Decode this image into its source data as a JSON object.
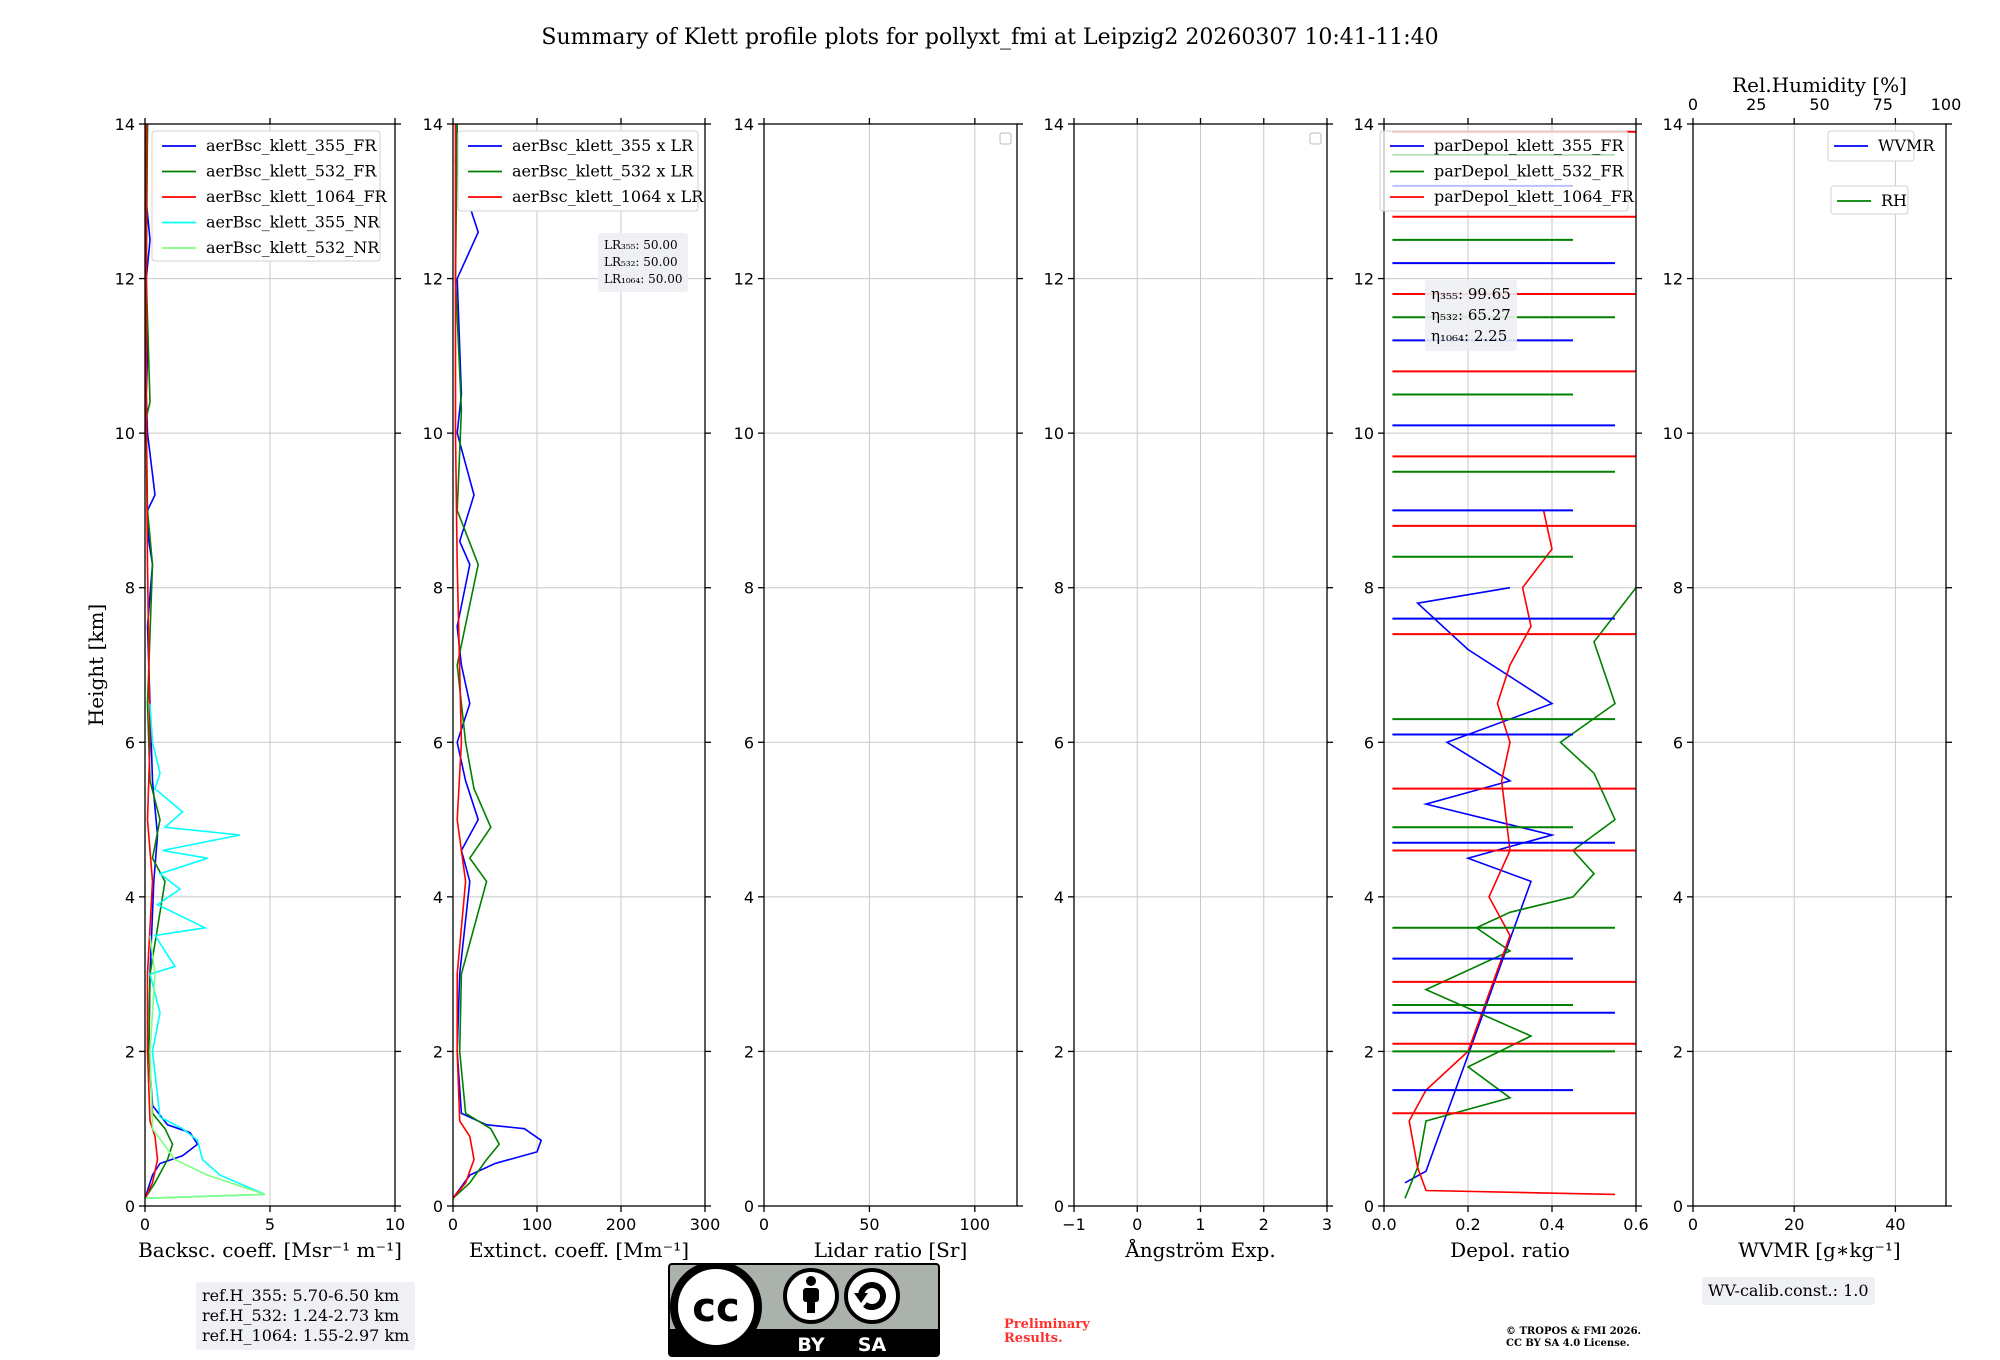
{
  "title": "Summary of Klett profile plots for pollyxt_fmi at Leipzig2 20260307 10:41-11:40",
  "colors": {
    "c355": "#0000ff",
    "c532": "#008000",
    "c1064": "#ff0000",
    "c355nr": "#00ffff",
    "c532nr": "#80ff80"
  },
  "chart_data": [
    {
      "type": "line",
      "panel": "backscatter",
      "xlabel": "Backsc. coeff. [Msr⁻¹ m⁻¹]",
      "ylabel": "Height [km]",
      "xlim": [
        0,
        10
      ],
      "ylim": [
        0,
        14
      ],
      "xticks": [
        "0",
        "5",
        "10"
      ],
      "yticks": [
        "0",
        "2",
        "4",
        "6",
        "8",
        "10",
        "12",
        "14"
      ],
      "legend": [
        "aerBsc_klett_355_FR",
        "aerBsc_klett_532_FR",
        "aerBsc_klett_1064_FR",
        "aerBsc_klett_355_NR",
        "aerBsc_klett_532_NR"
      ],
      "series": [
        {
          "name": "aerBsc_klett_355_FR",
          "color": "#0000ff",
          "x": [
            0,
            0.3,
            0.6,
            1.5,
            2.1,
            1.8,
            0.9,
            0.3,
            0.15,
            0.2,
            0.35,
            0.5,
            0.3,
            0.2,
            0.1,
            0.3,
            0.15,
            0.1,
            0.4,
            0.1,
            0.05,
            0.1,
            0.05,
            0.2,
            0.05,
            0.1
          ],
          "y": [
            0.1,
            0.4,
            0.55,
            0.65,
            0.8,
            0.95,
            1.05,
            1.3,
            2,
            3,
            4.2,
            4.8,
            5.5,
            6.5,
            7.5,
            8.3,
            8.6,
            9,
            9.2,
            10,
            10.5,
            11,
            12,
            12.5,
            13,
            14
          ]
        },
        {
          "name": "aerBsc_klett_532_FR",
          "color": "#008000",
          "x": [
            0,
            0.4,
            0.9,
            1.1,
            0.8,
            0.3,
            0.15,
            0.2,
            0.8,
            0.3,
            0.6,
            0.2,
            0.1,
            0.3,
            0.1,
            0.05,
            0.2,
            0.05,
            0.1
          ],
          "y": [
            0.1,
            0.3,
            0.6,
            0.8,
            1,
            1.2,
            2,
            3,
            4.2,
            4.5,
            5,
            5.5,
            6.5,
            8.3,
            9,
            10.2,
            10.4,
            12,
            14
          ]
        },
        {
          "name": "aerBsc_klett_1064_FR",
          "color": "#ff0000",
          "x": [
            0,
            0.3,
            0.5,
            0.4,
            0.2,
            0.1,
            0.1,
            0.3,
            0.1,
            0.2,
            0.1,
            0.05,
            0.05
          ],
          "y": [
            0.1,
            0.3,
            0.6,
            0.9,
            1.1,
            2,
            3,
            4.2,
            5,
            6,
            8.3,
            10,
            14
          ]
        },
        {
          "name": "aerBsc_klett_355_NR",
          "color": "#00ffff",
          "x": [
            0,
            4.8,
            3,
            2.3,
            2.1,
            1.5,
            0.6,
            0.3,
            0.6,
            0.2,
            1.2,
            0.4,
            2.4,
            0.5,
            1.4,
            0.6,
            2.5,
            0.7,
            3.8,
            0.8,
            1.5,
            0.4,
            0.6,
            0.3,
            0.2
          ],
          "y": [
            0.1,
            0.15,
            0.4,
            0.6,
            0.85,
            1,
            1.15,
            2,
            2.5,
            3,
            3.1,
            3.5,
            3.6,
            3.9,
            4.1,
            4.3,
            4.5,
            4.6,
            4.8,
            4.9,
            5.1,
            5.4,
            5.6,
            6,
            6.5
          ]
        },
        {
          "name": "aerBsc_klett_532_NR",
          "color": "#80ff80",
          "x": [
            0,
            4.8,
            2.5,
            1.2,
            0.3,
            0.2,
            0.4,
            0.2
          ],
          "y": [
            0.1,
            0.15,
            0.4,
            0.6,
            1,
            2,
            3,
            3.5
          ]
        }
      ],
      "notes": [
        "ref.H_355: 5.70-6.50 km",
        "ref.H_532: 1.24-2.73 km",
        "ref.H_1064: 1.55-2.97 km"
      ]
    },
    {
      "type": "line",
      "panel": "extinction",
      "xlabel": "Extinct. coeff. [Mm⁻¹]",
      "xlim": [
        0,
        300
      ],
      "ylim": [
        0,
        14
      ],
      "xticks": [
        "0",
        "100",
        "200",
        "300"
      ],
      "yticks": [
        "0",
        "2",
        "4",
        "6",
        "8",
        "10",
        "12",
        "14"
      ],
      "legend": [
        "aerBsc_klett_355 x LR",
        "aerBsc_klett_532 x LR",
        "aerBsc_klett_1064 x LR"
      ],
      "series": [
        {
          "name": "aerBsc_klett_355 x LR",
          "color": "#0000ff",
          "x": [
            0,
            20,
            50,
            100,
            105,
            85,
            40,
            10,
            5,
            8,
            20,
            10,
            30,
            15,
            5,
            20,
            10,
            5,
            20,
            8,
            25,
            5,
            10,
            5,
            30,
            3,
            5
          ],
          "y": [
            0.1,
            0.4,
            0.55,
            0.7,
            0.85,
            1,
            1.05,
            1.2,
            2,
            3,
            4.2,
            4.6,
            5,
            5.5,
            6,
            6.5,
            7,
            7.5,
            8.3,
            8.6,
            9.2,
            10,
            10.5,
            12,
            12.6,
            13.5,
            14
          ]
        },
        {
          "name": "aerBsc_klett_532 x LR",
          "color": "#008000",
          "x": [
            0,
            20,
            40,
            55,
            45,
            15,
            8,
            10,
            40,
            20,
            45,
            25,
            15,
            5,
            30,
            5,
            10,
            3,
            5
          ],
          "y": [
            0.1,
            0.3,
            0.6,
            0.8,
            1,
            1.2,
            2,
            3,
            4.2,
            4.5,
            4.9,
            5.4,
            6,
            7,
            8.3,
            9,
            10.3,
            12,
            14
          ]
        },
        {
          "name": "aerBsc_klett_1064 x LR",
          "color": "#ff0000",
          "x": [
            0,
            15,
            25,
            20,
            8,
            5,
            5,
            15,
            5,
            10,
            5,
            3,
            3
          ],
          "y": [
            0.1,
            0.3,
            0.6,
            0.9,
            1.1,
            2,
            3,
            4.2,
            5,
            6,
            8.3,
            10,
            14
          ]
        }
      ],
      "notes": [
        "LR₃₅₅: 50.00",
        "LR₅₃₂: 50.00",
        "LR₁₀₆₄: 50.00"
      ]
    },
    {
      "type": "line",
      "panel": "lidar_ratio",
      "xlabel": "Lidar ratio [Sr]",
      "xlim": [
        0,
        120
      ],
      "ylim": [
        0,
        14
      ],
      "xticks": [
        "0",
        "50",
        "100"
      ],
      "yticks": [
        "0",
        "2",
        "4",
        "6",
        "8",
        "10",
        "12",
        "14"
      ],
      "series": []
    },
    {
      "type": "line",
      "panel": "angstrom",
      "xlabel": "Ångström Exp.",
      "xlim": [
        -1,
        3
      ],
      "ylim": [
        0,
        14
      ],
      "xticks": [
        "−1",
        "0",
        "1",
        "2",
        "3"
      ],
      "yticks": [
        "0",
        "2",
        "4",
        "6",
        "8",
        "10",
        "12",
        "14"
      ],
      "series": []
    },
    {
      "type": "line",
      "panel": "depolarization",
      "xlabel": "Depol. ratio",
      "xlim": [
        0,
        0.6
      ],
      "ylim": [
        0,
        14
      ],
      "xticks": [
        "0.0",
        "0.2",
        "0.4",
        "0.6"
      ],
      "yticks": [
        "0",
        "2",
        "4",
        "6",
        "8",
        "10",
        "12",
        "14"
      ],
      "legend": [
        "parDepol_klett_355_FR",
        "parDepol_klett_532_FR",
        "parDepol_klett_1064_FR"
      ],
      "series": [
        {
          "name": "parDepol_klett_355_FR",
          "color": "#0000ff",
          "x": [
            0.05,
            0.1,
            0.35,
            0.2,
            0.4,
            0.1,
            0.3,
            0.15,
            0.4,
            0.2,
            0.08,
            0.3
          ],
          "y": [
            0.3,
            0.45,
            4.2,
            4.5,
            4.8,
            5.2,
            5.5,
            6,
            6.5,
            7.2,
            7.8,
            8
          ]
        },
        {
          "name": "parDepol_klett_532_FR",
          "color": "#008000",
          "x": [
            0.05,
            0.08,
            0.1,
            0.3,
            0.2,
            0.35,
            0.1,
            0.3,
            0.22,
            0.3,
            0.45,
            0.5,
            0.45,
            0.55,
            0.5,
            0.42,
            0.55,
            0.5,
            0.6
          ],
          "y": [
            0.1,
            0.5,
            1.1,
            1.4,
            1.8,
            2.2,
            2.8,
            3.3,
            3.6,
            3.8,
            4,
            4.3,
            4.6,
            5,
            5.6,
            6,
            6.5,
            7.3,
            8
          ]
        },
        {
          "name": "parDepol_klett_1064_FR",
          "color": "#ff0000",
          "x": [
            0.55,
            0.1,
            0.08,
            0.06,
            0.1,
            0.2,
            0.3,
            0.25,
            0.3,
            0.28,
            0.3,
            0.27,
            0.3,
            0.35,
            0.33,
            0.4,
            0.38
          ],
          "y": [
            0.15,
            0.2,
            0.5,
            1.1,
            1.5,
            2,
            3.5,
            4,
            4.6,
            5.5,
            6,
            6.5,
            7,
            7.5,
            8,
            8.5,
            9
          ]
        }
      ],
      "notes": [
        "η₃₅₅: 99.65",
        "η₅₃₂: 65.27",
        "η₁₀₆₄: 2.25"
      ]
    },
    {
      "type": "line",
      "panel": "wvmr",
      "xlabel": "WVMR [g∗kg⁻¹]",
      "xlim": [
        0,
        50
      ],
      "ylim": [
        0,
        14
      ],
      "xticks": [
        "0",
        "20",
        "40"
      ],
      "yticks": [
        "0",
        "2",
        "4",
        "6",
        "8",
        "10",
        "12",
        "14"
      ],
      "top_xlabel": "Rel.Humidity [%]",
      "top_xticks": [
        "0",
        "25",
        "50",
        "75",
        "100"
      ],
      "legend": [
        "WVMR",
        "RH"
      ],
      "series": [],
      "notes": [
        "WV-calib.const.: 1.0"
      ]
    }
  ],
  "footer": {
    "preliminary": "Preliminary Results.",
    "copyright_1": "© TROPOS & FMI 2026.",
    "copyright_2": "CC BY SA 4.0 License.",
    "license_by": "BY",
    "license_sa": "SA",
    "cc": "cc"
  }
}
